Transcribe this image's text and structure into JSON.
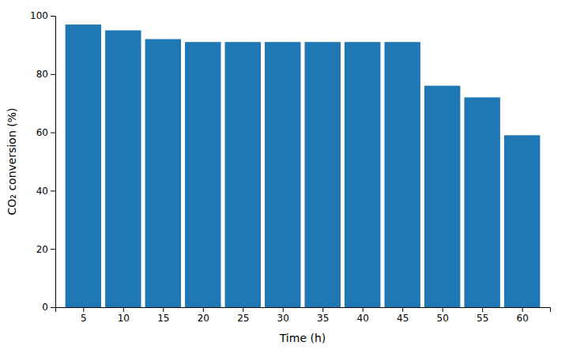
{
  "chart_data": {
    "type": "bar",
    "x": [
      5,
      10,
      15,
      20,
      25,
      30,
      35,
      40,
      45,
      50,
      55,
      60
    ],
    "values": [
      97,
      95,
      92,
      91,
      91,
      91,
      91,
      91,
      91,
      76,
      72,
      59
    ],
    "xlabel": "Time (h)",
    "ylabel": "CO₂ conversion (%)",
    "xlim": [
      1.5,
      63.5
    ],
    "ylim": [
      0,
      100
    ],
    "xticks": [
      5,
      10,
      15,
      20,
      25,
      30,
      35,
      40,
      45,
      50,
      55,
      60
    ],
    "yticks": [
      0,
      20,
      40,
      60,
      80,
      100
    ],
    "grid": false
  }
}
